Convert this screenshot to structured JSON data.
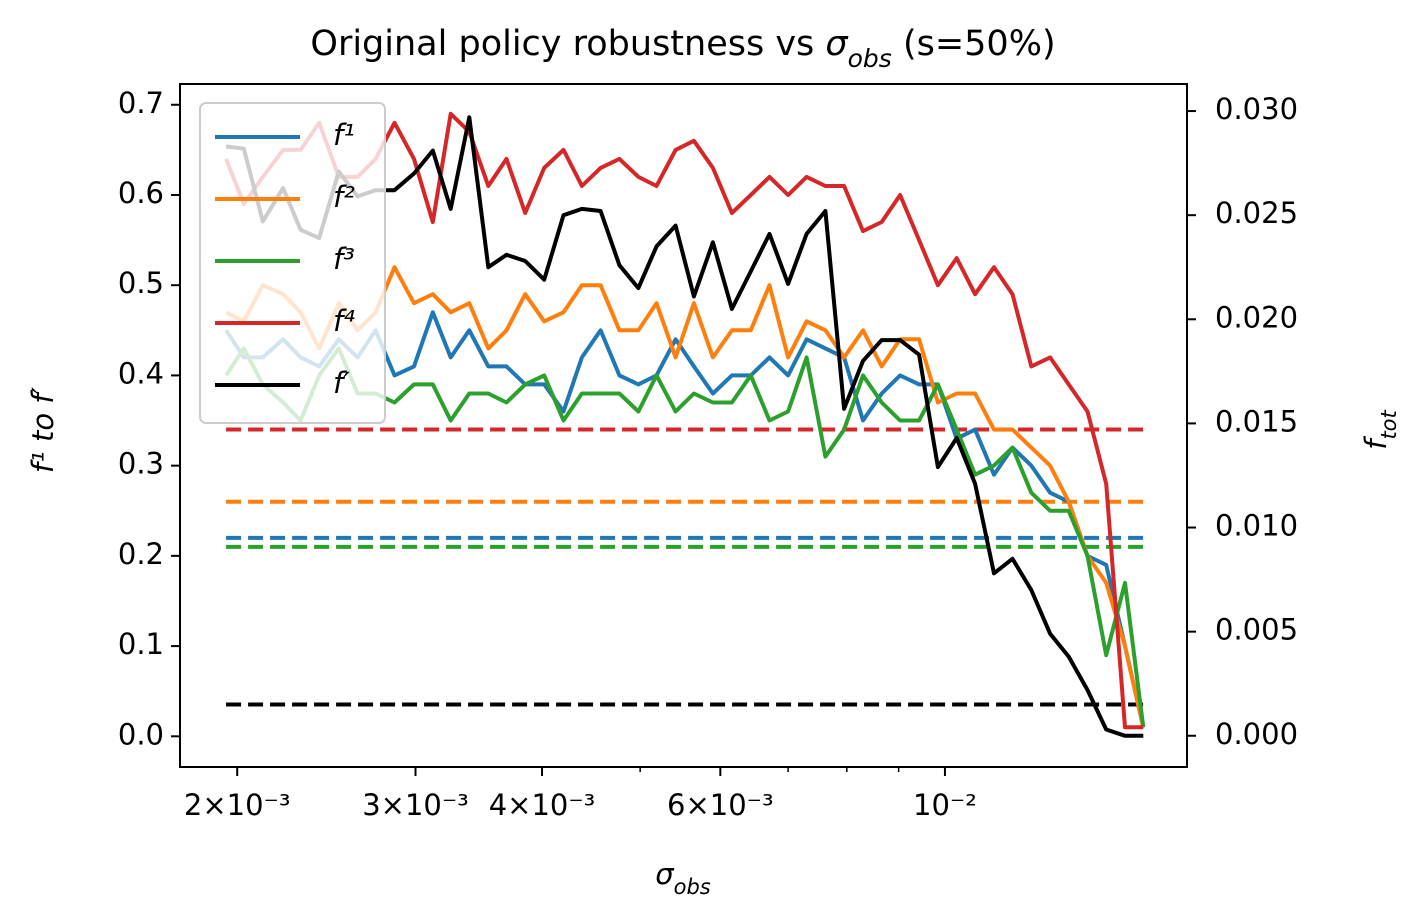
{
  "chart_data": {
    "type": "line",
    "title": [
      "Original policy robustness vs ",
      "σ",
      "obs",
      " (s=50%)"
    ],
    "x_label": [
      "σ",
      "obs"
    ],
    "y_label": [
      "f¹ to f′"
    ],
    "y2_label": [
      "f",
      "tot"
    ],
    "x_log": true,
    "x": [
      0.00195,
      0.00203,
      0.00212,
      0.00222,
      0.00231,
      0.00241,
      0.00252,
      0.00263,
      0.00274,
      0.00286,
      0.00299,
      0.00312,
      0.00325,
      0.00339,
      0.00354,
      0.00369,
      0.00385,
      0.00402,
      0.0042,
      0.00438,
      0.00457,
      0.00477,
      0.00498,
      0.00519,
      0.00542,
      0.00565,
      0.0059,
      0.00616,
      0.00643,
      0.00671,
      0.007,
      0.0073,
      0.00762,
      0.00795,
      0.0083,
      0.00866,
      0.00903,
      0.00943,
      0.00984,
      0.01027,
      0.01071,
      0.01118,
      0.01166,
      0.01217,
      0.0127,
      0.01325,
      0.01383,
      0.01443,
      0.01506,
      0.0157
    ],
    "series": [
      {
        "name": "f¹",
        "color": "#1f77b4",
        "values": [
          0.45,
          0.42,
          0.42,
          0.44,
          0.42,
          0.41,
          0.44,
          0.42,
          0.45,
          0.4,
          0.41,
          0.47,
          0.42,
          0.45,
          0.41,
          0.41,
          0.39,
          0.39,
          0.36,
          0.42,
          0.45,
          0.4,
          0.39,
          0.4,
          0.44,
          0.41,
          0.38,
          0.4,
          0.4,
          0.42,
          0.4,
          0.44,
          0.43,
          0.42,
          0.35,
          0.38,
          0.4,
          0.39,
          0.39,
          0.33,
          0.34,
          0.29,
          0.32,
          0.3,
          0.27,
          0.26,
          0.2,
          0.19,
          0.1,
          0.01
        ]
      },
      {
        "name": "f²",
        "color": "#ff7f0e",
        "values": [
          0.47,
          0.46,
          0.5,
          0.49,
          0.47,
          0.43,
          0.48,
          0.45,
          0.47,
          0.52,
          0.48,
          0.49,
          0.47,
          0.48,
          0.43,
          0.45,
          0.49,
          0.46,
          0.47,
          0.5,
          0.5,
          0.45,
          0.45,
          0.48,
          0.42,
          0.48,
          0.42,
          0.45,
          0.45,
          0.5,
          0.42,
          0.46,
          0.45,
          0.42,
          0.45,
          0.41,
          0.44,
          0.44,
          0.37,
          0.38,
          0.38,
          0.34,
          0.34,
          0.32,
          0.3,
          0.26,
          0.2,
          0.17,
          0.1,
          0.01
        ]
      },
      {
        "name": "f³",
        "color": "#2ca02c",
        "values": [
          0.4,
          0.43,
          0.39,
          0.37,
          0.35,
          0.4,
          0.43,
          0.38,
          0.38,
          0.37,
          0.39,
          0.39,
          0.35,
          0.38,
          0.38,
          0.37,
          0.39,
          0.4,
          0.35,
          0.38,
          0.38,
          0.38,
          0.36,
          0.4,
          0.36,
          0.38,
          0.37,
          0.37,
          0.4,
          0.35,
          0.36,
          0.42,
          0.31,
          0.34,
          0.4,
          0.37,
          0.35,
          0.35,
          0.39,
          0.34,
          0.29,
          0.3,
          0.32,
          0.27,
          0.25,
          0.25,
          0.2,
          0.09,
          0.17,
          0.01
        ]
      },
      {
        "name": "f⁴",
        "color": "#d62728",
        "values": [
          0.64,
          0.59,
          0.62,
          0.65,
          0.65,
          0.68,
          0.62,
          0.62,
          0.64,
          0.68,
          0.64,
          0.57,
          0.69,
          0.67,
          0.61,
          0.64,
          0.58,
          0.63,
          0.65,
          0.61,
          0.63,
          0.64,
          0.62,
          0.61,
          0.65,
          0.66,
          0.63,
          0.58,
          0.6,
          0.62,
          0.6,
          0.62,
          0.61,
          0.61,
          0.56,
          0.57,
          0.6,
          0.55,
          0.5,
          0.53,
          0.49,
          0.52,
          0.49,
          0.41,
          0.42,
          0.39,
          0.36,
          0.28,
          0.01,
          0.01
        ]
      },
      {
        "name": "f′",
        "color": "#000000",
        "axis": "y2",
        "values": [
          0.0283,
          0.0282,
          0.0247,
          0.0263,
          0.0243,
          0.0239,
          0.0271,
          0.0259,
          0.0262,
          0.0262,
          0.027,
          0.0281,
          0.0253,
          0.0297,
          0.0225,
          0.0231,
          0.0228,
          0.0219,
          0.025,
          0.0253,
          0.0252,
          0.0226,
          0.0215,
          0.0235,
          0.0245,
          0.0211,
          0.0237,
          0.0205,
          0.0223,
          0.0241,
          0.0217,
          0.0241,
          0.0252,
          0.0157,
          0.018,
          0.019,
          0.019,
          0.0183,
          0.0129,
          0.0143,
          0.0121,
          0.0078,
          0.0085,
          0.007,
          0.0049,
          0.0038,
          0.0022,
          0.0003,
          0,
          0
        ]
      }
    ],
    "reference_lines": [
      {
        "value": 0.22,
        "color": "#1f77b4"
      },
      {
        "value": 0.26,
        "color": "#ff7f0e"
      },
      {
        "value": 0.21,
        "color": "#2ca02c"
      },
      {
        "value": 0.34,
        "color": "#d62728"
      },
      {
        "value": 0.0015,
        "color": "#000000",
        "axis": "y2"
      }
    ],
    "xlim": [
      0.001756,
      0.01734
    ],
    "xticks": [
      {
        "value": 0.002,
        "label": "2×10⁻³"
      },
      {
        "value": 0.003,
        "label": "3×10⁻³"
      },
      {
        "value": 0.004,
        "label": "4×10⁻³"
      },
      {
        "value": 0.006,
        "label": "6×10⁻³"
      },
      {
        "value": 0.01,
        "label": "10⁻²"
      }
    ],
    "minor_xticks": [
      0.005,
      0.007,
      0.008,
      0.009
    ],
    "ylim": [
      -0.034,
      0.723
    ],
    "yticks": [
      {
        "value": 0,
        "label": "0.0"
      },
      0.1,
      0.2,
      0.3,
      0.4,
      0.5,
      0.6,
      0.7
    ],
    "y2lim": [
      -0.0015,
      0.0313
    ],
    "y2ticks": [
      {
        "value": 0,
        "label": "0.000"
      },
      0.005,
      {
        "value": 0.01,
        "label": "0.010"
      },
      0.015,
      {
        "value": 0.02,
        "label": "0.020"
      },
      0.025,
      {
        "value": 0.03,
        "label": "0.030"
      }
    ],
    "legend": "upper left",
    "grid": false
  }
}
